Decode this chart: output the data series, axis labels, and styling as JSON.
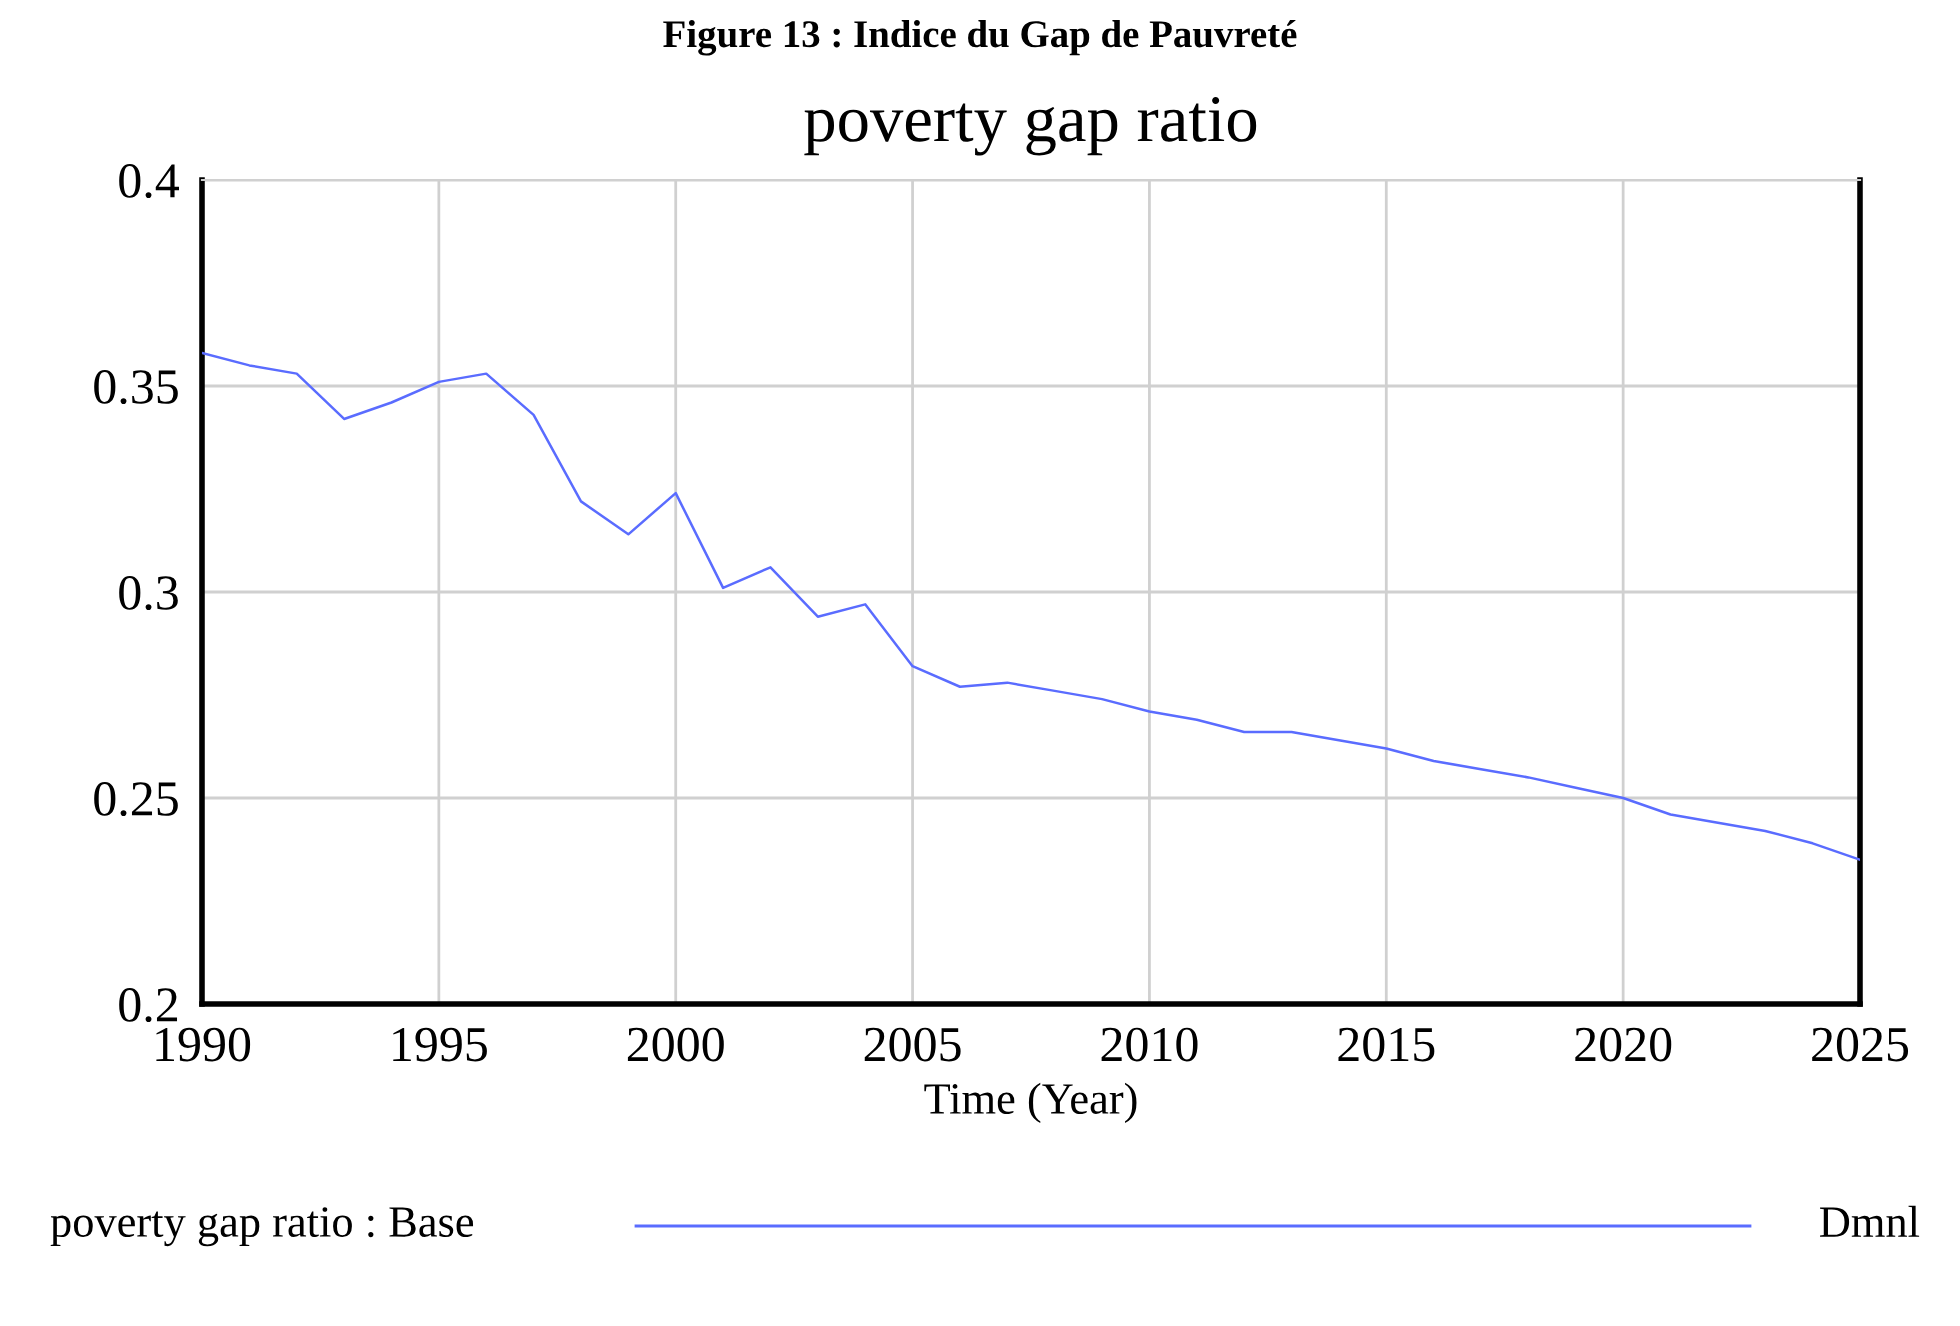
{
  "chart_data": {
    "type": "line",
    "title": "poverty gap ratio",
    "xlabel": "Time (Year)",
    "annotations": [
      "Figure 13 : Indice du Gap de Pauvreté",
      "Dmnl"
    ],
    "x": [
      1990,
      1991,
      1992,
      1993,
      1994,
      1995,
      1996,
      1997,
      1998,
      1999,
      2000,
      2001,
      2002,
      2003,
      2004,
      2005,
      2006,
      2007,
      2008,
      2009,
      2010,
      2011,
      2012,
      2013,
      2014,
      2015,
      2016,
      2017,
      2018,
      2019,
      2020,
      2021,
      2022,
      2023,
      2024,
      2025
    ],
    "series": [
      {
        "name": "poverty gap ratio : Base",
        "color": "#5a6cff",
        "values": [
          0.358,
          0.355,
          0.353,
          0.342,
          0.346,
          0.351,
          0.353,
          0.343,
          0.322,
          0.314,
          0.324,
          0.301,
          0.306,
          0.294,
          0.297,
          0.282,
          0.277,
          0.278,
          0.276,
          0.274,
          0.271,
          0.269,
          0.266,
          0.266,
          0.264,
          0.262,
          0.259,
          0.257,
          0.255,
          0.2525,
          0.25,
          0.246,
          0.244,
          0.242,
          0.239,
          0.235
        ]
      }
    ],
    "xlim": [
      1990,
      2025
    ],
    "xticks": [
      1990,
      1995,
      2000,
      2005,
      2010,
      2015,
      2020,
      2025
    ],
    "ylim": [
      0.2,
      0.4
    ],
    "yticks": [
      0.2,
      0.25,
      0.3,
      0.35,
      0.4
    ],
    "grid": true,
    "legend": "bottom",
    "marker": "none",
    "line_style": "solid"
  }
}
